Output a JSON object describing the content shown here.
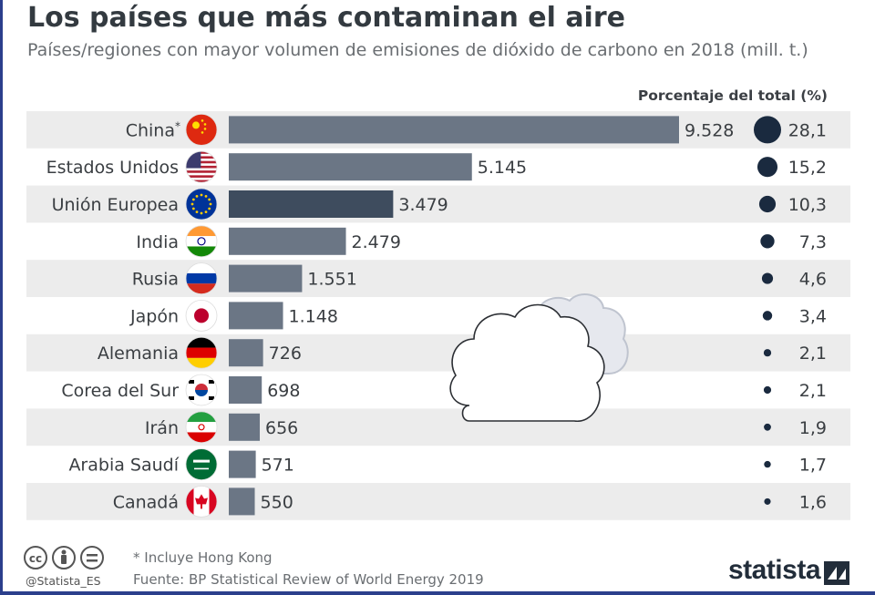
{
  "title": "Los países que más contaminan el aire",
  "subtitle": "Países/regiones con mayor volumen de emisiones de dióxido de carbono en 2018 (mill. t.)",
  "pct_header": "Porcentaje del total (%)",
  "footnote": "* Incluye Hong Kong",
  "source": "Fuente: BP Statistical Review of World Energy 2019",
  "handle": "@Statista_ES",
  "logo": "statista",
  "colors": {
    "bar": "#6b7685",
    "bar_highlight": "#3e4c5e",
    "dot": "#1a2a3f",
    "row_band": "#ececec"
  },
  "chart_data": {
    "type": "bar",
    "orientation": "horizontal",
    "title": "Los países que más contaminan el aire",
    "subtitle": "Países/regiones con mayor volumen de emisiones de dióxido de carbono en 2018 (mill. t.)",
    "categories": [
      "China*",
      "Estados Unidos",
      "Unión Europea",
      "India",
      "Rusia",
      "Japón",
      "Alemania",
      "Corea del Sur",
      "Irán",
      "Arabia Saudí",
      "Canadá"
    ],
    "flags": [
      "china-flag-icon",
      "usa-flag-icon",
      "eu-flag-icon",
      "india-flag-icon",
      "russia-flag-icon",
      "japan-flag-icon",
      "germany-flag-icon",
      "south-korea-flag-icon",
      "iran-flag-icon",
      "saudi-arabia-flag-icon",
      "canada-flag-icon"
    ],
    "values": [
      9528,
      5145,
      3479,
      2479,
      1551,
      1148,
      726,
      698,
      656,
      571,
      550
    ],
    "value_labels": [
      "9.528",
      "5.145",
      "3.479",
      "2.479",
      "1.551",
      "1.148",
      "726",
      "698",
      "656",
      "571",
      "550"
    ],
    "share_pct": [
      28.1,
      15.2,
      10.3,
      7.3,
      4.6,
      3.4,
      2.1,
      2.1,
      1.9,
      1.7,
      1.6
    ],
    "share_labels": [
      "28,1",
      "15,2",
      "10,3",
      "7,3",
      "4,6",
      "3,4",
      "2,1",
      "2,1",
      "1,9",
      "1,7",
      "1,6"
    ],
    "highlight": "Unión Europea",
    "xlim": [
      0,
      9528
    ],
    "grid": false,
    "decoration": "cloud-icon"
  }
}
